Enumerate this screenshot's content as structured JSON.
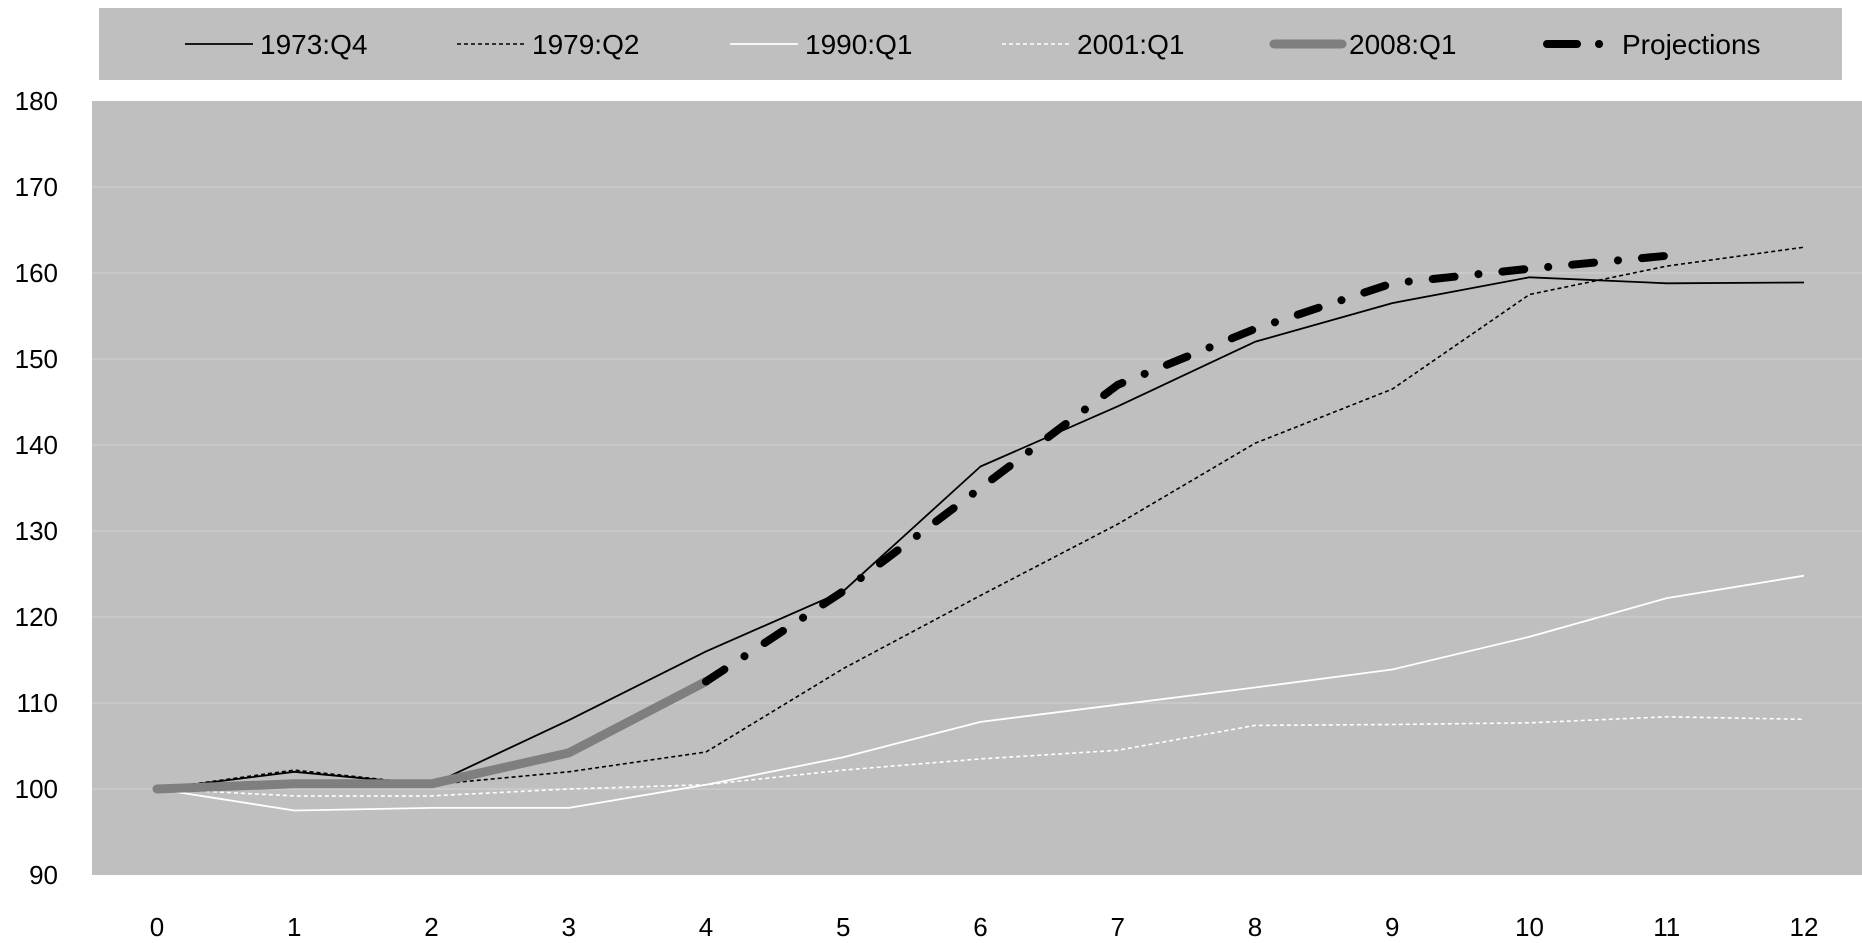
{
  "chart_data": {
    "type": "line",
    "title": "",
    "xlabel": "",
    "ylabel": "",
    "x": [
      0,
      1,
      2,
      3,
      4,
      5,
      6,
      7,
      8,
      9,
      10,
      11,
      12
    ],
    "xlim": [
      0,
      12
    ],
    "ylim": [
      90,
      180
    ],
    "yticks": [
      90,
      100,
      110,
      120,
      130,
      140,
      150,
      160,
      170,
      180
    ],
    "xticks": [
      0,
      1,
      2,
      3,
      4,
      5,
      6,
      7,
      8,
      9,
      10,
      11,
      12
    ],
    "grid": "horizontal",
    "legend_position": "top",
    "series": [
      {
        "name": "1973:Q4",
        "style": "thin-solid",
        "color": "#000000",
        "values": [
          100,
          102,
          100.5,
          108,
          116,
          123,
          137.5,
          144.5,
          152,
          156.5,
          159.5,
          158.8,
          158.9
        ]
      },
      {
        "name": "1979:Q2",
        "style": "thin-dotted",
        "color": "#000000",
        "values": [
          100,
          102.2,
          100.5,
          102,
          104.3,
          114,
          122.5,
          130.8,
          140.2,
          146.5,
          157.5,
          160.8,
          163
        ]
      },
      {
        "name": "1990:Q1",
        "style": "thin-solid",
        "color": "#ffffff",
        "values": [
          100,
          97.5,
          97.8,
          97.8,
          100.5,
          103.7,
          107.8,
          109.8,
          111.8,
          113.9,
          117.7,
          122.2,
          124.8
        ]
      },
      {
        "name": "2001:Q1",
        "style": "thin-dotted",
        "color": "#ffffff",
        "values": [
          100,
          99.2,
          99.2,
          100,
          100.5,
          102.2,
          103.5,
          104.5,
          107.4,
          107.5,
          107.7,
          108.4,
          108.1
        ]
      },
      {
        "name": "2008:Q1",
        "style": "thick-solid",
        "color": "#7f7f7f",
        "values": [
          100,
          100.6,
          100.6,
          104.2,
          112.5,
          null,
          null,
          null,
          null,
          null,
          null,
          null,
          null
        ]
      },
      {
        "name": "Projections",
        "style": "dash-dot",
        "color": "#000000",
        "values": [
          null,
          null,
          null,
          null,
          112.5,
          123,
          135,
          147,
          153.5,
          158.8,
          160.5,
          162,
          null
        ]
      }
    ]
  }
}
